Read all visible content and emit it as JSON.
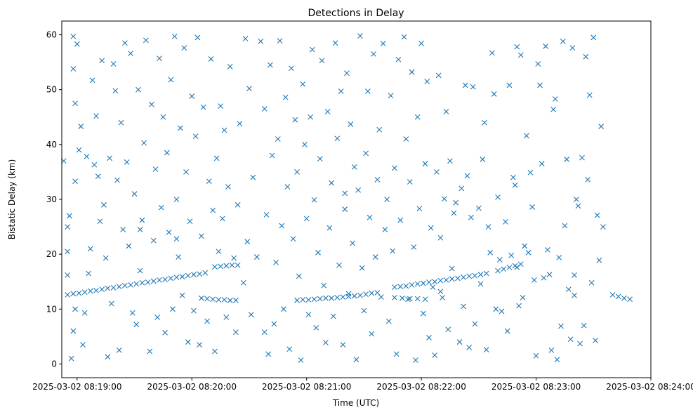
{
  "chart_data": {
    "type": "scatter",
    "title": "Detections in Delay",
    "xlabel": "Time (UTC)",
    "ylabel": "Bistatic Delay (km)",
    "x_units": "seconds after 2025-03-02 08:19:00",
    "xlim": [
      -8,
      300
    ],
    "ylim": [
      -2.5,
      62.5
    ],
    "x_ticks": [
      0,
      60,
      120,
      180,
      240,
      300
    ],
    "x_tick_labels": [
      "2025-03-02 08:19:00",
      "2025-03-02 08:20:00",
      "2025-03-02 08:21:00",
      "2025-03-02 08:22:00",
      "2025-03-02 08:23:00",
      "2025-03-02 08:24:00"
    ],
    "y_ticks": [
      0,
      10,
      20,
      30,
      40,
      50,
      60
    ],
    "y_tick_labels": [
      "0",
      "10",
      "20",
      "30",
      "40",
      "50",
      "60"
    ],
    "grid": false,
    "marker": "x",
    "color": "#1f77b4",
    "points": [
      [
        -5,
        12.6
      ],
      [
        -2,
        12.8
      ],
      [
        1,
        12.9
      ],
      [
        4,
        13.1
      ],
      [
        7,
        13.3
      ],
      [
        10,
        13.4
      ],
      [
        13,
        13.6
      ],
      [
        16,
        13.8
      ],
      [
        19,
        13.9
      ],
      [
        22,
        14.1
      ],
      [
        25,
        14.3
      ],
      [
        28,
        14.4
      ],
      [
        31,
        14.6
      ],
      [
        34,
        14.8
      ],
      [
        37,
        14.9
      ],
      [
        40,
        15.1
      ],
      [
        43,
        15.3
      ],
      [
        46,
        15.4
      ],
      [
        49,
        15.6
      ],
      [
        52,
        15.8
      ],
      [
        55,
        15.9
      ],
      [
        58,
        16.1
      ],
      [
        61,
        16.3
      ],
      [
        64,
        16.4
      ],
      [
        67,
        16.6
      ],
      [
        72,
        17.7
      ],
      [
        75,
        17.8
      ],
      [
        78,
        17.9
      ],
      [
        81,
        18.0
      ],
      [
        84,
        18.0
      ],
      [
        65,
        12.0
      ],
      [
        68,
        11.9
      ],
      [
        71,
        11.8
      ],
      [
        74,
        11.7
      ],
      [
        77,
        11.7
      ],
      [
        80,
        11.6
      ],
      [
        83,
        11.6
      ],
      [
        115,
        11.6
      ],
      [
        118,
        11.7
      ],
      [
        121,
        11.7
      ],
      [
        124,
        11.8
      ],
      [
        127,
        11.9
      ],
      [
        130,
        12.0
      ],
      [
        133,
        12.0
      ],
      [
        136,
        12.1
      ],
      [
        139,
        12.2
      ],
      [
        142,
        12.3
      ],
      [
        145,
        12.4
      ],
      [
        148,
        12.5
      ],
      [
        151,
        12.7
      ],
      [
        154,
        12.9
      ],
      [
        157,
        13.0
      ],
      [
        166,
        14.0
      ],
      [
        169,
        14.1
      ],
      [
        172,
        14.2
      ],
      [
        175,
        14.4
      ],
      [
        178,
        14.6
      ],
      [
        181,
        14.7
      ],
      [
        184,
        14.9
      ],
      [
        187,
        15.0
      ],
      [
        190,
        15.2
      ],
      [
        193,
        15.3
      ],
      [
        196,
        15.5
      ],
      [
        199,
        15.6
      ],
      [
        202,
        15.8
      ],
      [
        205,
        16.0
      ],
      [
        208,
        16.1
      ],
      [
        211,
        16.3
      ],
      [
        214,
        16.5
      ],
      [
        220,
        17.0
      ],
      [
        223,
        17.3
      ],
      [
        226,
        17.6
      ],
      [
        229,
        17.9
      ],
      [
        232,
        18.2
      ],
      [
        166,
        12.1
      ],
      [
        170,
        12.0
      ],
      [
        174,
        11.9
      ],
      [
        178,
        11.9
      ],
      [
        182,
        11.8
      ],
      [
        280,
        12.6
      ],
      [
        283,
        12.3
      ],
      [
        286,
        12.0
      ],
      [
        289,
        11.8
      ],
      [
        -7,
        37
      ],
      [
        -5,
        25
      ],
      [
        -5,
        20.5
      ],
      [
        -5,
        16.2
      ],
      [
        -4,
        27
      ],
      [
        -3,
        1
      ],
      [
        -2,
        6
      ],
      [
        -2,
        59.7
      ],
      [
        -2,
        53.8
      ],
      [
        -1,
        47.5
      ],
      [
        -1,
        33.3
      ],
      [
        0,
        58.3
      ],
      [
        1,
        39
      ],
      [
        2,
        43.3
      ],
      [
        3,
        3.5
      ],
      [
        4,
        9.3
      ],
      [
        5,
        37.8
      ],
      [
        6,
        16.5
      ],
      [
        7,
        21
      ],
      [
        8,
        51.7
      ],
      [
        9,
        36.3
      ],
      [
        10,
        45.2
      ],
      [
        11,
        34.2
      ],
      [
        12,
        26
      ],
      [
        13,
        55.3
      ],
      [
        14,
        29
      ],
      [
        15,
        19.3
      ],
      [
        16,
        1.3
      ],
      [
        17,
        37.5
      ],
      [
        18,
        11
      ],
      [
        19,
        54.7
      ],
      [
        20,
        49.8
      ],
      [
        21,
        33.5
      ],
      [
        22,
        2.5
      ],
      [
        23,
        44
      ],
      [
        24,
        24.5
      ],
      [
        25,
        58.5
      ],
      [
        26,
        36.8
      ],
      [
        27,
        21.5
      ],
      [
        28,
        56.6
      ],
      [
        29,
        9.3
      ],
      [
        30,
        31
      ],
      [
        31,
        7.2
      ],
      [
        32,
        50
      ],
      [
        33,
        17
      ],
      [
        34,
        26.2
      ],
      [
        35,
        40.3
      ],
      [
        36,
        59
      ],
      [
        38,
        2.3
      ],
      [
        39,
        47.3
      ],
      [
        40,
        22.5
      ],
      [
        41,
        35.5
      ],
      [
        42,
        8.5
      ],
      [
        43,
        55.7
      ],
      [
        44,
        28.5
      ],
      [
        45,
        45
      ],
      [
        46,
        5.7
      ],
      [
        47,
        38.5
      ],
      [
        48,
        24
      ],
      [
        49,
        51.8
      ],
      [
        50,
        10
      ],
      [
        51,
        59.7
      ],
      [
        52,
        30
      ],
      [
        53,
        19.5
      ],
      [
        54,
        43
      ],
      [
        55,
        12.5
      ],
      [
        56,
        57.6
      ],
      [
        57,
        35
      ],
      [
        58,
        4
      ],
      [
        59,
        26
      ],
      [
        60,
        48.8
      ],
      [
        61,
        9.7
      ],
      [
        62,
        41.5
      ],
      [
        63,
        59.5
      ],
      [
        64,
        3.5
      ],
      [
        65,
        23.3
      ],
      [
        66,
        46.8
      ],
      [
        68,
        7.8
      ],
      [
        69,
        33.3
      ],
      [
        70,
        55.6
      ],
      [
        71,
        28
      ],
      [
        72,
        2.3
      ],
      [
        73,
        37.5
      ],
      [
        74,
        20.5
      ],
      [
        75,
        47
      ],
      [
        76,
        26.5
      ],
      [
        77,
        42.6
      ],
      [
        78,
        8.5
      ],
      [
        79,
        32.3
      ],
      [
        80,
        54.2
      ],
      [
        82,
        19.3
      ],
      [
        83,
        5.8
      ],
      [
        84,
        29
      ],
      [
        85,
        43.8
      ],
      [
        87,
        14.8
      ],
      [
        88,
        59.3
      ],
      [
        89,
        22.3
      ],
      [
        90,
        50.2
      ],
      [
        91,
        9
      ],
      [
        92,
        34
      ],
      [
        94,
        19.5
      ],
      [
        96,
        58.8
      ],
      [
        98,
        46.5
      ],
      [
        99,
        27.2
      ],
      [
        100,
        1.8
      ],
      [
        101,
        54.5
      ],
      [
        102,
        38
      ],
      [
        103,
        7.3
      ],
      [
        104,
        18.5
      ],
      [
        105,
        41
      ],
      [
        106,
        58.9
      ],
      [
        107,
        25.2
      ],
      [
        108,
        10
      ],
      [
        109,
        48.6
      ],
      [
        110,
        32.3
      ],
      [
        111,
        2.7
      ],
      [
        112,
        53.9
      ],
      [
        113,
        22.8
      ],
      [
        114,
        44.5
      ],
      [
        115,
        35
      ],
      [
        116,
        16
      ],
      [
        117,
        0.7
      ],
      [
        118,
        51
      ],
      [
        119,
        40
      ],
      [
        120,
        26.5
      ],
      [
        121,
        9
      ],
      [
        122,
        45
      ],
      [
        123,
        57.3
      ],
      [
        124,
        29.9
      ],
      [
        125,
        6.6
      ],
      [
        126,
        20.3
      ],
      [
        127,
        37.4
      ],
      [
        128,
        55.3
      ],
      [
        129,
        14.3
      ],
      [
        130,
        3.9
      ],
      [
        131,
        46
      ],
      [
        132,
        24.8
      ],
      [
        133,
        33
      ],
      [
        134,
        8.7
      ],
      [
        135,
        58.5
      ],
      [
        136,
        41.1
      ],
      [
        137,
        18
      ],
      [
        138,
        49.7
      ],
      [
        139,
        3.5
      ],
      [
        140,
        28.2
      ],
      [
        141,
        53
      ],
      [
        142,
        12.8
      ],
      [
        143,
        43.7
      ],
      [
        144,
        22
      ],
      [
        145,
        35.9
      ],
      [
        146,
        0.8
      ],
      [
        147,
        31.7
      ],
      [
        148,
        59.8
      ],
      [
        149,
        17.5
      ],
      [
        150,
        9.7
      ],
      [
        151,
        38.4
      ],
      [
        152,
        49.7
      ],
      [
        153,
        26.7
      ],
      [
        154,
        5.5
      ],
      [
        155,
        56.5
      ],
      [
        156,
        19.5
      ],
      [
        157,
        33.6
      ],
      [
        158,
        42.7
      ],
      [
        159,
        12.2
      ],
      [
        160,
        58.4
      ],
      [
        161,
        24.5
      ],
      [
        162,
        30
      ],
      [
        163,
        7.8
      ],
      [
        164,
        48.9
      ],
      [
        165,
        20.6
      ],
      [
        166,
        35.7
      ],
      [
        167,
        1.8
      ],
      [
        168,
        55.5
      ],
      [
        169,
        26.2
      ],
      [
        171,
        59.6
      ],
      [
        172,
        41
      ],
      [
        173,
        11.8
      ],
      [
        174,
        33.2
      ],
      [
        175,
        53.2
      ],
      [
        176,
        21.3
      ],
      [
        177,
        0.7
      ],
      [
        178,
        45
      ],
      [
        179,
        28.3
      ],
      [
        180,
        58.4
      ],
      [
        181,
        9.2
      ],
      [
        182,
        36.5
      ],
      [
        183,
        51.5
      ],
      [
        184,
        4.8
      ],
      [
        185,
        24.8
      ],
      [
        186,
        14
      ],
      [
        187,
        1.6
      ],
      [
        188,
        35
      ],
      [
        189,
        52.6
      ],
      [
        190,
        23
      ],
      [
        191,
        12.1
      ],
      [
        192,
        30.1
      ],
      [
        193,
        46
      ],
      [
        194,
        6.3
      ],
      [
        195,
        37
      ],
      [
        196,
        17.4
      ],
      [
        197,
        27.5
      ],
      [
        198,
        29.4
      ],
      [
        200,
        4
      ],
      [
        201,
        32
      ],
      [
        202,
        10.5
      ],
      [
        203,
        50.8
      ],
      [
        204,
        34.3
      ],
      [
        205,
        3
      ],
      [
        206,
        26.7
      ],
      [
        207,
        50.5
      ],
      [
        208,
        7.3
      ],
      [
        210,
        28.4
      ],
      [
        211,
        14.6
      ],
      [
        212,
        37.3
      ],
      [
        213,
        44
      ],
      [
        214,
        2.6
      ],
      [
        215,
        25
      ],
      [
        216,
        20.3
      ],
      [
        217,
        56.7
      ],
      [
        218,
        49.2
      ],
      [
        219,
        10
      ],
      [
        220,
        30.4
      ],
      [
        221,
        19
      ],
      [
        222,
        9.6
      ],
      [
        224,
        25.9
      ],
      [
        225,
        6
      ],
      [
        226,
        50.8
      ],
      [
        227,
        19.8
      ],
      [
        228,
        34
      ],
      [
        229,
        32.6
      ],
      [
        230,
        57.8
      ],
      [
        231,
        10.6
      ],
      [
        232,
        56.3
      ],
      [
        233,
        12.1
      ],
      [
        234,
        21.5
      ],
      [
        235,
        41.6
      ],
      [
        236,
        20.3
      ],
      [
        237,
        34.9
      ],
      [
        238,
        28.6
      ],
      [
        239,
        15.3
      ],
      [
        240,
        1.5
      ],
      [
        241,
        54.7
      ],
      [
        242,
        50.8
      ],
      [
        243,
        36.5
      ],
      [
        244,
        15.7
      ],
      [
        245,
        57.9
      ],
      [
        246,
        20.8
      ],
      [
        247,
        16.3
      ],
      [
        248,
        2.5
      ],
      [
        249,
        46.4
      ],
      [
        250,
        48.3
      ],
      [
        251,
        0.8
      ],
      [
        252,
        19.4
      ],
      [
        253,
        6.9
      ],
      [
        254,
        58.8
      ],
      [
        255,
        25.2
      ],
      [
        256,
        37.3
      ],
      [
        257,
        13.6
      ],
      [
        258,
        4.5
      ],
      [
        259,
        57.6
      ],
      [
        260,
        16.2
      ],
      [
        261,
        30
      ],
      [
        262,
        28.8
      ],
      [
        263,
        3.7
      ],
      [
        264,
        37.6
      ],
      [
        265,
        7
      ],
      [
        266,
        56
      ],
      [
        267,
        33.6
      ],
      [
        268,
        49
      ],
      [
        269,
        14.8
      ],
      [
        270,
        59.5
      ],
      [
        271,
        4.3
      ],
      [
        272,
        27.1
      ],
      [
        273,
        18.9
      ],
      [
        274,
        43.3
      ],
      [
        275,
        25
      ],
      [
        -1,
        10
      ],
      [
        33,
        24.5
      ],
      [
        52,
        22.8
      ],
      [
        98,
        5.8
      ],
      [
        140,
        31.1
      ],
      [
        190,
        13.2
      ],
      [
        230,
        17.6
      ],
      [
        260,
        12.5
      ]
    ]
  }
}
